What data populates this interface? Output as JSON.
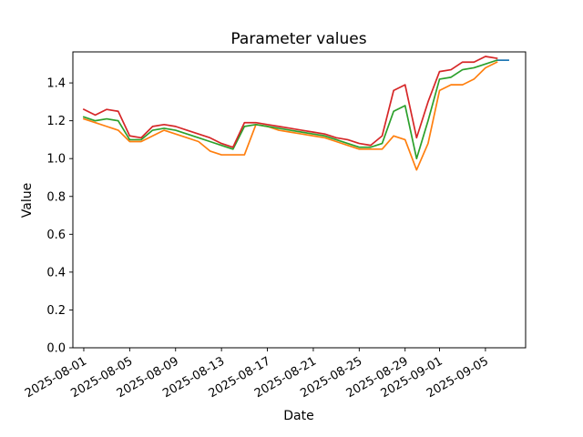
{
  "figure": {
    "background": "#ffffff",
    "frame_color": "#000000"
  },
  "chart_data": {
    "type": "line",
    "title": "Parameter values",
    "xlabel": "Date",
    "ylabel": "Value",
    "grid": false,
    "legend": "none",
    "ylim": [
      0.0,
      1.564
    ],
    "xlim_days": [
      -0.95,
      38.5
    ],
    "epoch": "2025-08-01",
    "yticks": [
      0.0,
      0.2,
      0.4,
      0.6,
      0.8,
      1.0,
      1.2,
      1.4
    ],
    "xticks": [
      "2025-08-01",
      "2025-08-05",
      "2025-08-09",
      "2025-08-13",
      "2025-08-17",
      "2025-08-21",
      "2025-08-25",
      "2025-08-29",
      "2025-09-01",
      "2025-09-05"
    ],
    "x_dates": [
      "2025-08-01",
      "2025-08-02",
      "2025-08-03",
      "2025-08-04",
      "2025-08-05",
      "2025-08-06",
      "2025-08-07",
      "2025-08-08",
      "2025-08-09",
      "2025-08-10",
      "2025-08-11",
      "2025-08-12",
      "2025-08-13",
      "2025-08-14",
      "2025-08-15",
      "2025-08-16",
      "2025-08-17",
      "2025-08-18",
      "2025-08-19",
      "2025-08-20",
      "2025-08-21",
      "2025-08-22",
      "2025-08-23",
      "2025-08-24",
      "2025-08-25",
      "2025-08-26",
      "2025-08-27",
      "2025-08-28",
      "2025-08-29",
      "2025-08-30",
      "2025-08-31",
      "2025-09-01",
      "2025-09-02",
      "2025-09-03",
      "2025-09-04",
      "2025-09-05",
      "2025-09-06"
    ],
    "series": [
      {
        "name": "blue",
        "color": "#1f77b4",
        "dates": [
          "2025-09-06",
          "2025-09-07"
        ],
        "values": [
          1.52,
          1.52
        ]
      },
      {
        "name": "orange",
        "color": "#ff7f0e",
        "values": [
          1.21,
          1.19,
          1.17,
          1.15,
          1.09,
          1.09,
          1.12,
          1.15,
          1.13,
          1.11,
          1.09,
          1.04,
          1.02,
          1.02,
          1.02,
          1.18,
          1.17,
          1.15,
          1.14,
          1.13,
          1.12,
          1.11,
          1.09,
          1.07,
          1.05,
          1.05,
          1.05,
          1.12,
          1.1,
          0.94,
          1.08,
          1.36,
          1.39,
          1.39,
          1.42,
          1.48,
          1.51
        ]
      },
      {
        "name": "green",
        "color": "#2ca02c",
        "values": [
          1.22,
          1.2,
          1.21,
          1.2,
          1.1,
          1.1,
          1.15,
          1.16,
          1.15,
          1.13,
          1.11,
          1.09,
          1.07,
          1.05,
          1.17,
          1.18,
          1.17,
          1.16,
          1.15,
          1.14,
          1.13,
          1.12,
          1.1,
          1.08,
          1.06,
          1.06,
          1.08,
          1.25,
          1.28,
          1.0,
          1.2,
          1.42,
          1.43,
          1.47,
          1.48,
          1.5,
          1.52
        ]
      },
      {
        "name": "red",
        "color": "#d62728",
        "values": [
          1.26,
          1.23,
          1.26,
          1.25,
          1.12,
          1.11,
          1.17,
          1.18,
          1.17,
          1.15,
          1.13,
          1.11,
          1.08,
          1.06,
          1.19,
          1.19,
          1.18,
          1.17,
          1.16,
          1.15,
          1.14,
          1.13,
          1.11,
          1.1,
          1.08,
          1.07,
          1.12,
          1.36,
          1.39,
          1.11,
          1.3,
          1.46,
          1.47,
          1.51,
          1.51,
          1.54,
          1.53
        ]
      }
    ]
  }
}
